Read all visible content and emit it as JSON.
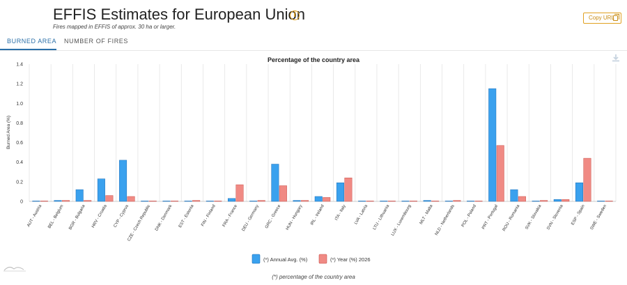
{
  "header": {
    "title": "EFFIS Estimates for European Union",
    "subtitle": "Fires mapped in EFFIS of approx. 30 ha or larger.",
    "info_icon": "i",
    "copy_url_label": "Copy URL"
  },
  "tabs": [
    {
      "label": "BURNED AREA",
      "active": true
    },
    {
      "label": "NUMBER OF FIRES",
      "active": false
    }
  ],
  "footnote": "(*) percentage of the country area",
  "colors": {
    "annual": "#3aa1ee",
    "year": "#f08a84",
    "accent": "#e0a020",
    "tab_active": "#2a6fa8"
  },
  "chart_data": {
    "type": "bar",
    "title": "Percentage of the country area",
    "ylabel": "Burned Area (%)",
    "xlabel": "",
    "ylim": [
      0,
      1.4
    ],
    "yticks": [
      "0",
      "0.2",
      "0.4",
      "0.6",
      "0.8",
      "1.0",
      "1.2",
      "1.4"
    ],
    "grid": "vertical",
    "legend_position": "bottom-center",
    "categories": [
      "AUT - Austria",
      "BEL - Belgium",
      "BGR - Bulgaria",
      "HRV - Croatia",
      "CYP - Cyprus",
      "CZE - Czech Republic",
      "DNK - Denmark",
      "EST - Estonia",
      "FIN - Finland",
      "FRA - France",
      "DEU - Germany",
      "GRC - Greece",
      "HUN - Hungary",
      "IRL - Ireland",
      "ITA - Italy",
      "LVA - Latvia",
      "LTU - Lithuania",
      "LUX - Luxembourg",
      "MLT - Malta",
      "NLD - Netherlands",
      "POL - Poland",
      "PRT - Portugal",
      "ROU - Romania",
      "SVK - Slovakia",
      "SVN - Slovenia",
      "ESP - Spain",
      "SWE - Sweden"
    ],
    "series": [
      {
        "name": "(*) Annual Avg. (%)",
        "values": [
          0.001,
          0.01,
          0.12,
          0.23,
          0.42,
          0.002,
          0.001,
          0.002,
          0.001,
          0.03,
          0.001,
          0.38,
          0.01,
          0.05,
          0.19,
          0.003,
          0.002,
          0.001,
          0.01,
          0.002,
          0.003,
          1.15,
          0.12,
          0.003,
          0.02,
          0.19,
          0.002
        ]
      },
      {
        "name": "(*) Year (%) 2026",
        "values": [
          0.001,
          0.01,
          0.01,
          0.06,
          0.05,
          0.001,
          0.001,
          0.01,
          0.001,
          0.17,
          0.01,
          0.16,
          0.01,
          0.04,
          0.24,
          0.001,
          0.001,
          0.001,
          0.001,
          0.01,
          0.001,
          0.57,
          0.05,
          0.01,
          0.02,
          0.44,
          0.002
        ]
      }
    ]
  }
}
